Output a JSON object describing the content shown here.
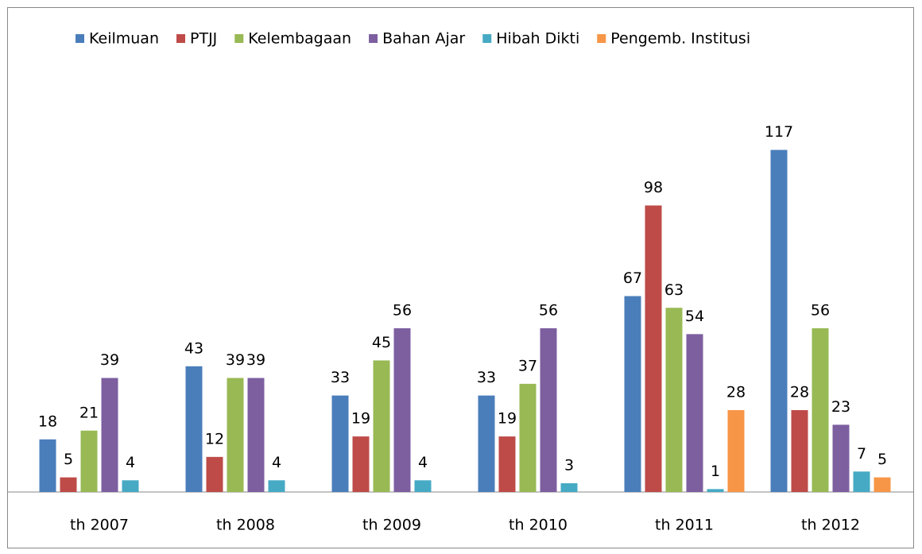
{
  "chart_data": {
    "type": "bar",
    "categories": [
      "th 2007",
      "th 2008",
      "th 2009",
      "th 2010",
      "th 2011",
      "th 2012"
    ],
    "series": [
      {
        "name": "Keilmuan",
        "color": "#4a7ebb",
        "values": [
          18,
          43,
          33,
          33,
          67,
          117
        ]
      },
      {
        "name": "PTJJ",
        "color": "#be4b48",
        "values": [
          5,
          12,
          19,
          19,
          98,
          28
        ]
      },
      {
        "name": "Kelembagaan",
        "color": "#98b954",
        "values": [
          21,
          39,
          45,
          37,
          63,
          56
        ]
      },
      {
        "name": "Bahan Ajar",
        "color": "#7d5fa0",
        "values": [
          39,
          39,
          56,
          56,
          54,
          23
        ]
      },
      {
        "name": "Hibah Dikti",
        "color": "#46aac5",
        "values": [
          4,
          4,
          4,
          3,
          1,
          7
        ]
      },
      {
        "name": "Pengemb. Institusi",
        "color": "#f79646",
        "values": [
          null,
          null,
          null,
          null,
          28,
          5
        ]
      }
    ],
    "ylim": [
      0,
      140
    ],
    "legend": "top"
  }
}
